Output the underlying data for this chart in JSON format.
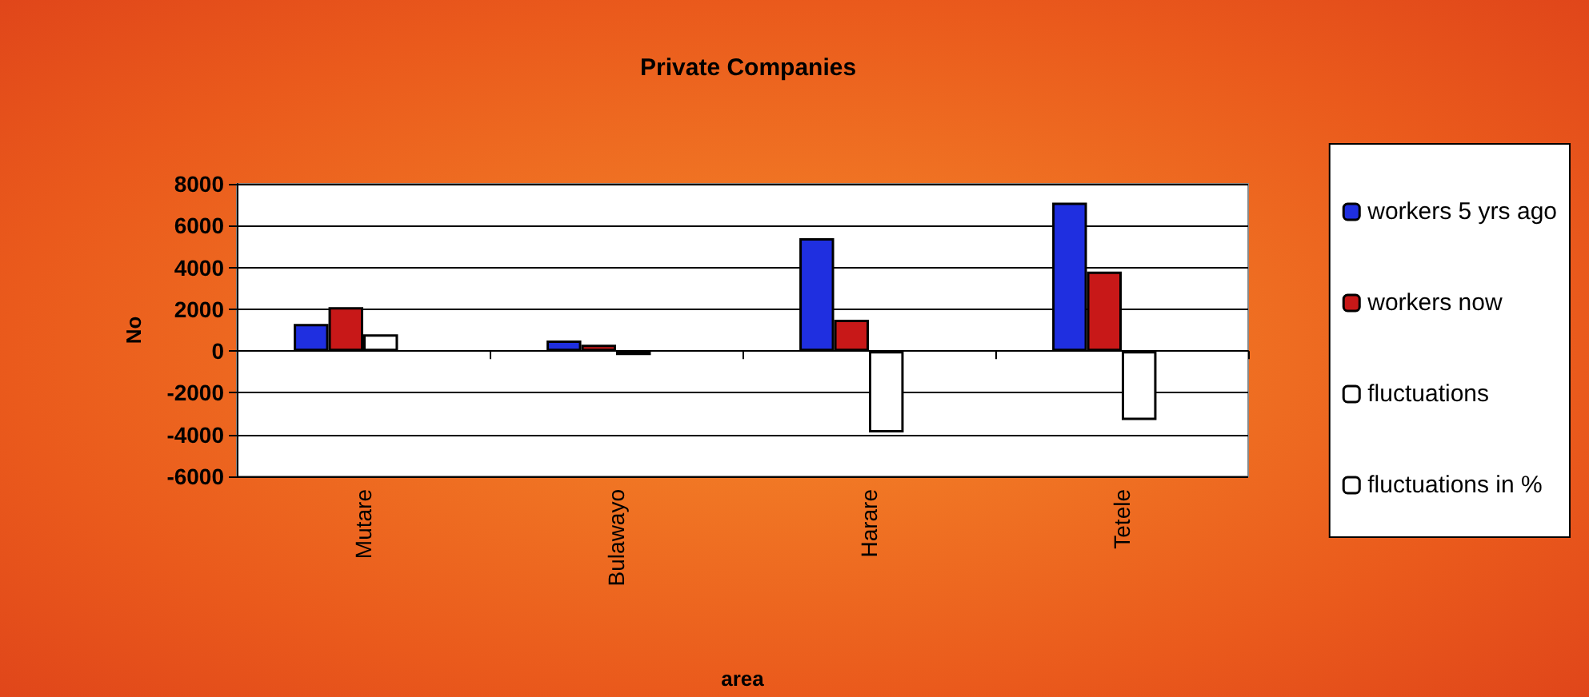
{
  "chart_data": {
    "type": "bar",
    "title": "Private Companies",
    "xlabel": "area",
    "ylabel": "No",
    "categories": [
      "Mutare",
      "Bulawayo",
      "Harare",
      "Tetele"
    ],
    "series": [
      {
        "name": "workers 5 yrs ago",
        "color": "#1f2fe0",
        "values": [
          1300,
          500,
          5400,
          7100
        ]
      },
      {
        "name": "workers now",
        "color": "#c81818",
        "values": [
          2100,
          300,
          1500,
          3800
        ]
      },
      {
        "name": "fluctuations",
        "color": "#ffffff",
        "values": [
          800,
          -200,
          -3900,
          -3300
        ]
      },
      {
        "name": "fluctuations in %",
        "color": "#ffffff",
        "values": [
          null,
          null,
          null,
          null
        ]
      }
    ],
    "ylim": [
      -6000,
      8000
    ],
    "yticks": [
      -6000,
      -4000,
      -2000,
      0,
      2000,
      4000,
      6000,
      8000
    ],
    "grid": "y",
    "legend": "right"
  }
}
